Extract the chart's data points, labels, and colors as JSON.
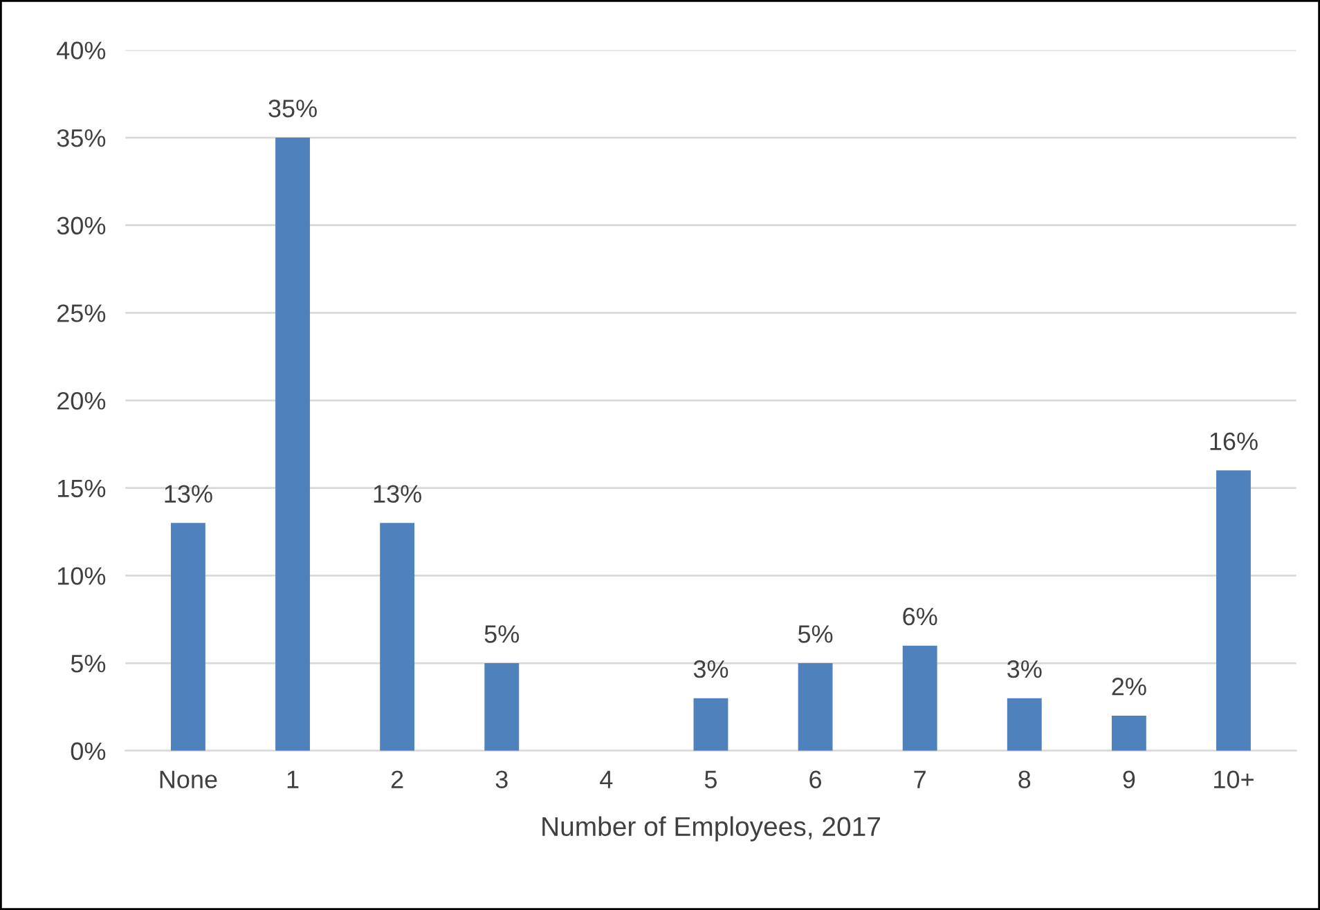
{
  "chart_data": {
    "type": "bar",
    "xlabel": "Number of Employees, 2017",
    "categories": [
      "None",
      "1",
      "2",
      "3",
      "4",
      "5",
      "6",
      "7",
      "8",
      "9",
      "10+"
    ],
    "values": [
      13,
      35,
      13,
      5,
      null,
      3,
      5,
      6,
      3,
      2,
      16
    ],
    "value_labels": [
      "13%",
      "35%",
      "13%",
      "5%",
      null,
      "3%",
      "5%",
      "6%",
      "3%",
      "2%",
      "16%"
    ],
    "color": "#4f81bd",
    "ylim": [
      0,
      40
    ],
    "yticks": [
      {
        "value": 0,
        "label": "0%"
      },
      {
        "value": 5,
        "label": "5%"
      },
      {
        "value": 10,
        "label": "10%"
      },
      {
        "value": 15,
        "label": "15%"
      },
      {
        "value": 20,
        "label": "20%"
      },
      {
        "value": 25,
        "label": "25%"
      },
      {
        "value": 30,
        "label": "30%"
      },
      {
        "value": 35,
        "label": "35%"
      },
      {
        "value": 40,
        "label": "40%"
      }
    ],
    "grid": "y",
    "legend": false
  }
}
